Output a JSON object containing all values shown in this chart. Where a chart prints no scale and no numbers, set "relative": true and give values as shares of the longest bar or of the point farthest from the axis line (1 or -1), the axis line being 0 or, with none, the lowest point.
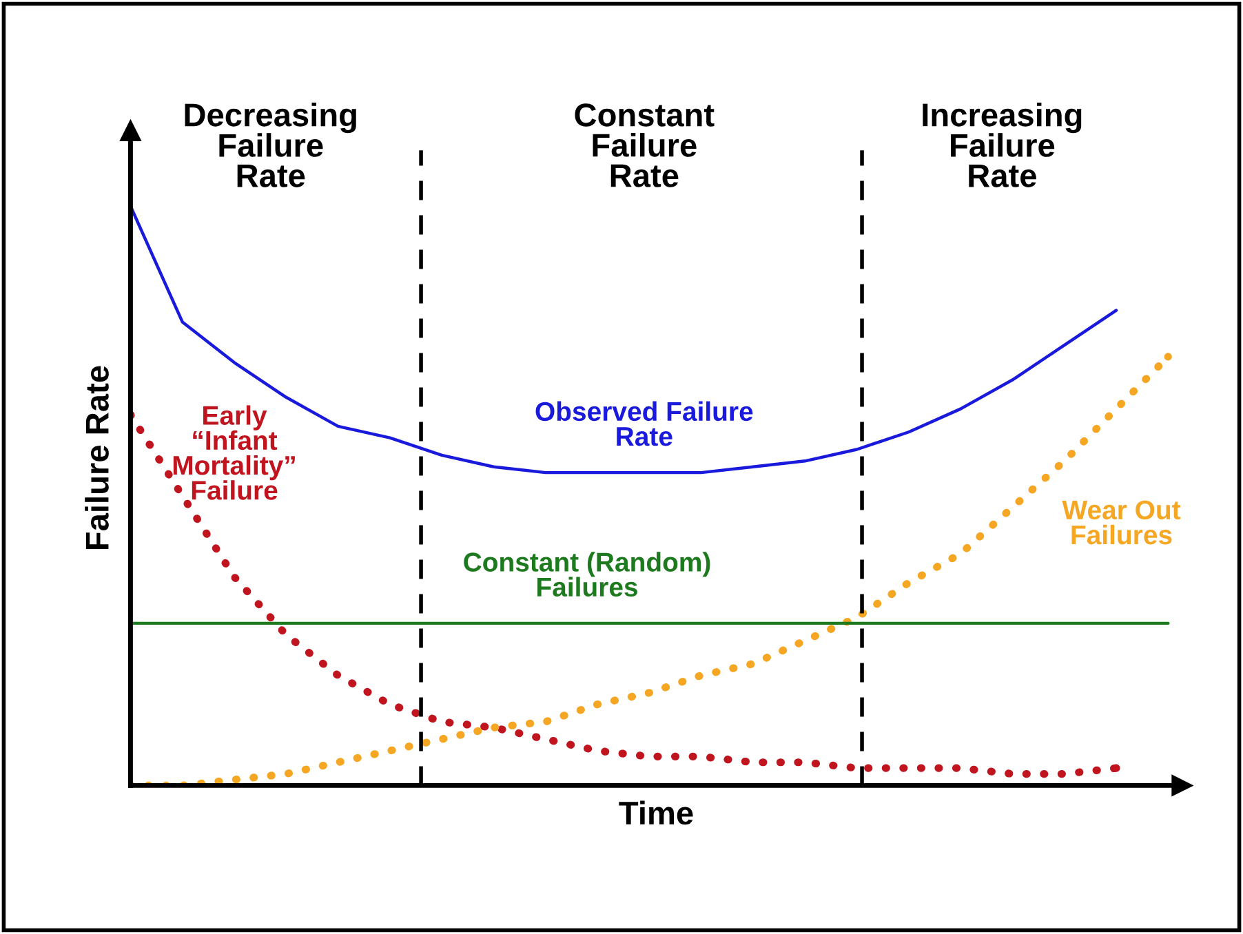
{
  "chart_data": {
    "type": "line",
    "relative": true,
    "xlabel": "Time",
    "ylabel": "Failure Rate",
    "legend": false,
    "marker": "none",
    "categories": [
      null,
      null,
      null,
      null,
      null,
      null,
      null,
      null,
      null,
      null,
      null,
      null,
      null,
      null,
      null,
      null,
      null,
      null,
      null,
      null,
      null
    ],
    "series": [
      {
        "name": "Observed Failure\nRate",
        "color": "#1a1adc",
        "line_style": "solid",
        "values": [
          1,
          0.8,
          0.73,
          0.67,
          0.62,
          0.6,
          0.57,
          0.55,
          0.54,
          0.54,
          0.54,
          0.54,
          0.55,
          0.56,
          0.58,
          0.61,
          0.65,
          0.7,
          0.76,
          0.82,
          null
        ]
      },
      {
        "name": "Early\n“Infant\nMortality”\nFailure",
        "color": "#c0141e",
        "line_style": "dotted",
        "values": [
          0.64,
          0.5,
          0.36,
          0.26,
          0.19,
          0.14,
          0.11,
          0.1,
          0.08,
          0.06,
          0.05,
          0.05,
          0.04,
          0.04,
          0.03,
          0.03,
          0.03,
          0.02,
          0.02,
          0.03,
          null
        ]
      },
      {
        "name": "Wear Out\nFailures",
        "color": "#f5a623",
        "line_style": "dotted",
        "values": [
          0,
          0,
          0.01,
          0.02,
          0.04,
          0.06,
          0.08,
          0.1,
          0.11,
          0.14,
          0.16,
          0.19,
          0.21,
          0.25,
          0.29,
          0.35,
          0.4,
          0.48,
          0.56,
          0.65,
          0.74
        ]
      },
      {
        "name": "Constant (Random)\nFailures",
        "color": "#1e7a1e",
        "line_style": "solid",
        "values": [
          0.28,
          0.28,
          0.28,
          0.28,
          0.28,
          0.28,
          0.28,
          0.28,
          0.28,
          0.28,
          0.28,
          0.28,
          0.28,
          0.28,
          0.28,
          0.28,
          0.28,
          0.28,
          0.28,
          0.28,
          0.28
        ]
      }
    ],
    "annotations": [
      "Decreasing\nFailure\nRate",
      "Constant\nFailure\nRate",
      "Increasing\nFailure\nRate"
    ]
  }
}
